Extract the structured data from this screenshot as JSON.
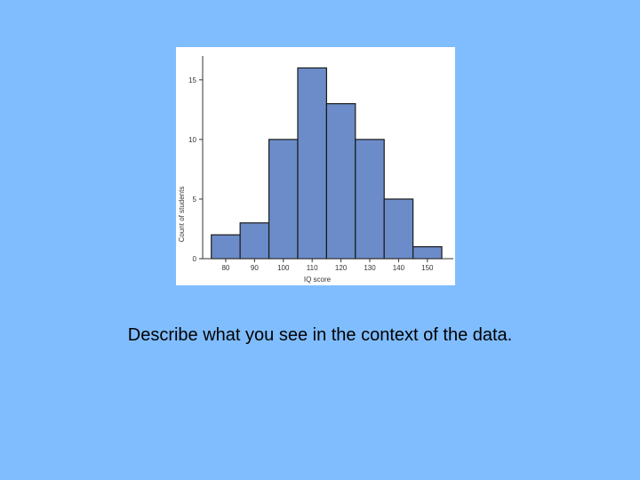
{
  "caption": "Describe what you see in the context of the data.",
  "colors": {
    "background": "#80bdff",
    "bar_fill": "#6b8cc8",
    "bar_stroke": "#1a1a1a"
  },
  "chart_data": {
    "type": "bar",
    "title": "",
    "xlabel": "IQ score",
    "ylabel": "Count of students",
    "categories": [
      "75-85",
      "85-95",
      "95-105",
      "105-115",
      "115-125",
      "125-135",
      "135-145",
      "145-155"
    ],
    "bin_edges": [
      75,
      85,
      95,
      105,
      115,
      125,
      135,
      145,
      155
    ],
    "values": [
      2,
      3,
      10,
      16,
      13,
      10,
      5,
      1
    ],
    "x_ticks": [
      80,
      90,
      100,
      110,
      120,
      130,
      140,
      150
    ],
    "y_ticks": [
      0,
      5,
      10,
      15
    ],
    "xlim": [
      72,
      159
    ],
    "ylim": [
      0,
      17
    ],
    "grid": false,
    "legend": "none"
  }
}
